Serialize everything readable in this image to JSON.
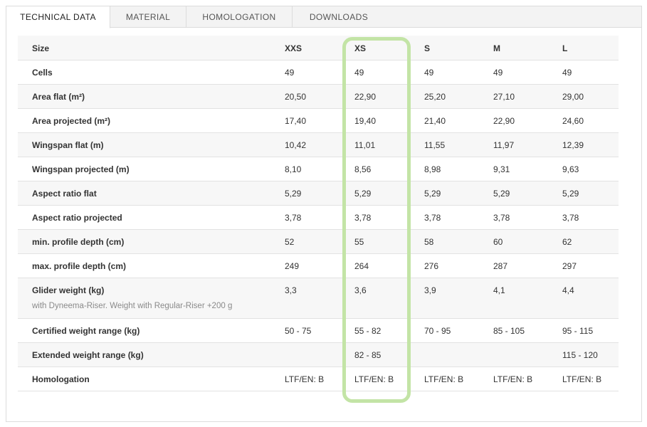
{
  "tabs": [
    {
      "label": "TECHNICAL DATA"
    },
    {
      "label": "MATERIAL"
    },
    {
      "label": "HOMOLOGATION"
    },
    {
      "label": "DOWNLOADS"
    }
  ],
  "table": {
    "header": [
      "Size",
      "XXS",
      "XS",
      "S",
      "M",
      "L"
    ],
    "rows": [
      {
        "label": "Cells",
        "values": [
          "49",
          "49",
          "49",
          "49",
          "49"
        ]
      },
      {
        "label": "Area flat (m²)",
        "values": [
          "20,50",
          "22,90",
          "25,20",
          "27,10",
          "29,00"
        ]
      },
      {
        "label": "Area projected (m²)",
        "values": [
          "17,40",
          "19,40",
          "21,40",
          "22,90",
          "24,60"
        ]
      },
      {
        "label": "Wingspan flat (m)",
        "values": [
          "10,42",
          "11,01",
          "11,55",
          "11,97",
          "12,39"
        ]
      },
      {
        "label": "Wingspan projected (m)",
        "values": [
          "8,10",
          "8,56",
          "8,98",
          "9,31",
          "9,63"
        ]
      },
      {
        "label": "Aspect ratio flat",
        "values": [
          "5,29",
          "5,29",
          "5,29",
          "5,29",
          "5,29"
        ]
      },
      {
        "label": "Aspect ratio projected",
        "values": [
          "3,78",
          "3,78",
          "3,78",
          "3,78",
          "3,78"
        ]
      },
      {
        "label": "min. profile depth (cm)",
        "values": [
          "52",
          "55",
          "58",
          "60",
          "62"
        ]
      },
      {
        "label": "max. profile depth (cm)",
        "values": [
          "249",
          "264",
          "276",
          "287",
          "297"
        ]
      },
      {
        "label": "Glider weight (kg)",
        "note": "with Dyneema-Riser. Weight with Regular-Riser +200 g",
        "values": [
          "3,3",
          "3,6",
          "3,9",
          "4,1",
          "4,4"
        ]
      },
      {
        "label": "Certified weight range (kg)",
        "values": [
          "50 - 75",
          "55 - 82",
          "70 - 95",
          "85 - 105",
          "95 - 115"
        ]
      },
      {
        "label": "Extended weight range (kg)",
        "values": [
          "",
          "82 - 85",
          "",
          "",
          "115 - 120"
        ]
      },
      {
        "label": "Homologation",
        "values": [
          "LTF/EN: B",
          "LTF/EN: B",
          "LTF/EN: B",
          "LTF/EN: B",
          "LTF/EN: B"
        ]
      }
    ]
  },
  "highlight_color": "#c3e4a6"
}
